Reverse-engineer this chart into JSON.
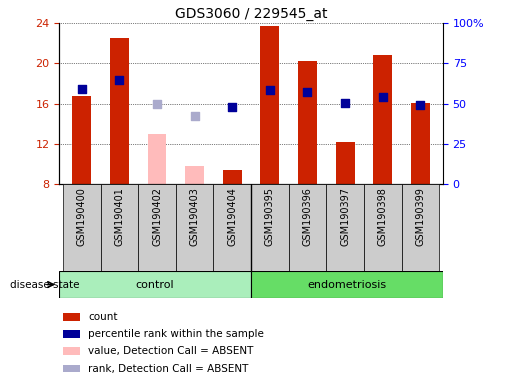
{
  "title": "GDS3060 / 229545_at",
  "samples": [
    "GSM190400",
    "GSM190401",
    "GSM190402",
    "GSM190403",
    "GSM190404",
    "GSM190395",
    "GSM190396",
    "GSM190397",
    "GSM190398",
    "GSM190399"
  ],
  "groups": {
    "control": [
      "GSM190400",
      "GSM190401",
      "GSM190402",
      "GSM190403",
      "GSM190404"
    ],
    "endometriosis": [
      "GSM190395",
      "GSM190396",
      "GSM190397",
      "GSM190398",
      "GSM190399"
    ]
  },
  "bar_values": {
    "GSM190400": 16.8,
    "GSM190401": 22.5,
    "GSM190402": 13.0,
    "GSM190403": 9.8,
    "GSM190404": 9.4,
    "GSM190395": 23.7,
    "GSM190396": 20.2,
    "GSM190397": 12.2,
    "GSM190398": 20.8,
    "GSM190399": 16.1
  },
  "bar_absent": {
    "GSM190402": true,
    "GSM190403": true
  },
  "percentile_values": {
    "GSM190400": 17.5,
    "GSM190401": 18.3,
    "GSM190402": 16.0,
    "GSM190403": 14.8,
    "GSM190404": 15.7,
    "GSM190395": 17.4,
    "GSM190396": 17.2,
    "GSM190397": 16.1,
    "GSM190398": 16.7,
    "GSM190399": 15.9
  },
  "percentile_absent": {
    "GSM190402": true,
    "GSM190403": true
  },
  "ylim_left": [
    8,
    24
  ],
  "ylim_right": [
    0,
    100
  ],
  "yticks_left": [
    8,
    12,
    16,
    20,
    24
  ],
  "yticks_right": [
    0,
    25,
    50,
    75,
    100
  ],
  "ytick_labels_right": [
    "0",
    "25",
    "50",
    "75",
    "100%"
  ],
  "color_bar_present": "#cc2200",
  "color_bar_absent": "#ffbbbb",
  "color_dot_present": "#000099",
  "color_dot_absent": "#aaaacc",
  "bar_width": 0.5,
  "dot_size": 30,
  "background_xticklabel": "#cccccc",
  "group_bar_color_control": "#aaeebb",
  "group_bar_color_endometriosis": "#66dd66",
  "group_label_control": "control",
  "group_label_endometriosis": "endometriosis",
  "disease_state_label": "disease state",
  "legend_items": [
    {
      "label": "count",
      "color": "#cc2200"
    },
    {
      "label": "percentile rank within the sample",
      "color": "#000099"
    },
    {
      "label": "value, Detection Call = ABSENT",
      "color": "#ffbbbb"
    },
    {
      "label": "rank, Detection Call = ABSENT",
      "color": "#aaaacc"
    }
  ]
}
